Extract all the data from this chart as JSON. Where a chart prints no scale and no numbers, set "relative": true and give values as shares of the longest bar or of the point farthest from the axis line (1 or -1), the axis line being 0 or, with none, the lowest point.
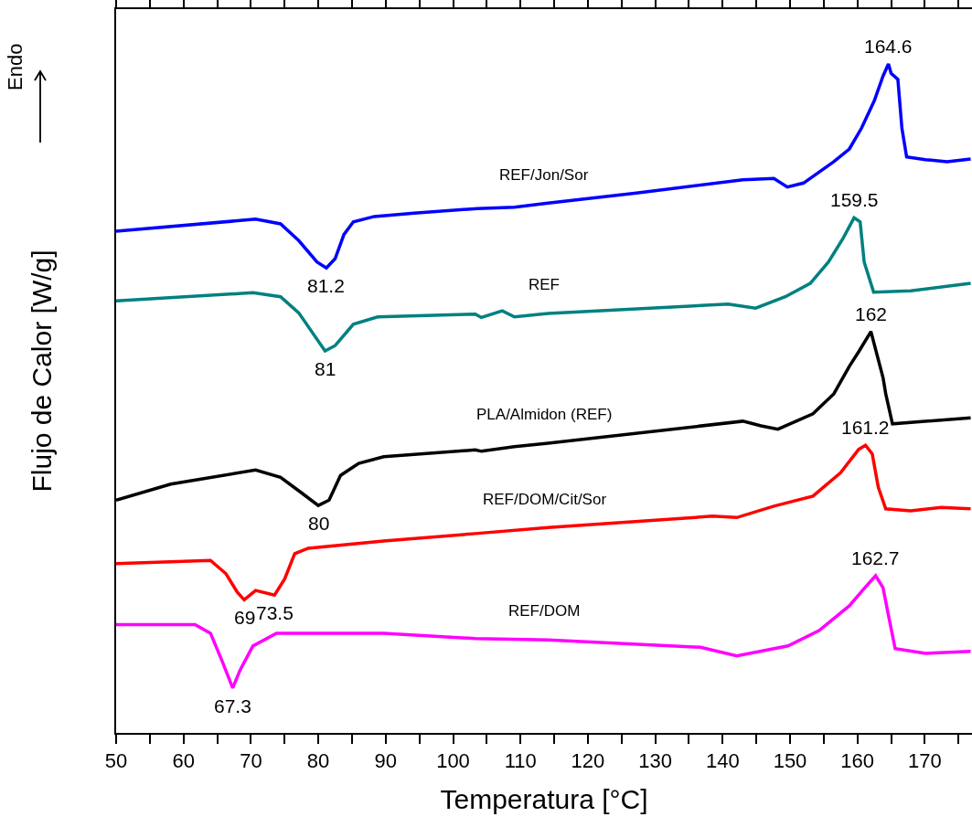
{
  "chart_data": {
    "type": "line",
    "relative": true,
    "xlabel": "Temperatura [°C]",
    "ylabel": "Flujo de Calor [W/g]",
    "xlim": [
      50,
      177
    ],
    "xticks": [
      50,
      {
        "value": 55,
        "label": null
      },
      60,
      {
        "value": 65,
        "label": null
      },
      70,
      {
        "value": 75,
        "label": null
      },
      80,
      {
        "value": 85,
        "label": null
      },
      90,
      {
        "value": 95,
        "label": null
      },
      100,
      {
        "value": 105,
        "label": null
      },
      110,
      {
        "value": 115,
        "label": null
      },
      120,
      {
        "value": 125,
        "label": null
      },
      130,
      {
        "value": 135,
        "label": null
      },
      140,
      {
        "value": 145,
        "label": null
      },
      150,
      {
        "value": 155,
        "label": null
      },
      160,
      {
        "value": 165,
        "label": null
      },
      170,
      {
        "value": 175,
        "label": null
      }
    ],
    "grid": false,
    "legend": false,
    "series": [
      {
        "name": "REF/Jon/Sor",
        "color": "#0000ff",
        "x": [
          50,
          70.7,
          74.4,
          77.1,
          79.8,
          81.2,
          82.5,
          83.8,
          85.2,
          88.3,
          94.2,
          103.6,
          109.1,
          114.1,
          127.2,
          143.0,
          147.6,
          149.6,
          152.0,
          156.5,
          158.8,
          160.6,
          162.5,
          163.8,
          164.6,
          165.0,
          166.0,
          166.6,
          167.3,
          170.1,
          173.3,
          176.8
        ],
        "values": [
          0.75,
          0.768,
          0.761,
          0.736,
          0.704,
          0.695,
          0.709,
          0.745,
          0.764,
          0.772,
          0.777,
          0.784,
          0.786,
          0.792,
          0.807,
          0.827,
          0.829,
          0.816,
          0.822,
          0.854,
          0.873,
          0.904,
          0.945,
          0.982,
          1,
          0.986,
          0.977,
          0.904,
          0.861,
          0.857,
          0.854,
          0.858
        ]
      },
      {
        "name": "REF",
        "color": "#008080",
        "x": [
          50,
          70.3,
          74.4,
          77.1,
          81.0,
          82.5,
          85.2,
          88.8,
          103.3,
          104.2,
          107.3,
          109.1,
          114.1,
          140.8,
          144.9,
          149.3,
          153.0,
          155.7,
          157.9,
          159.5,
          160.4,
          161.0,
          162.4,
          167.9,
          176.8
        ],
        "values": [
          0.646,
          0.658,
          0.652,
          0.628,
          0.571,
          0.579,
          0.611,
          0.622,
          0.626,
          0.621,
          0.631,
          0.622,
          0.627,
          0.641,
          0.635,
          0.652,
          0.672,
          0.704,
          0.74,
          0.77,
          0.764,
          0.704,
          0.659,
          0.661,
          0.672
        ]
      },
      {
        "name": "PLA/Almidon (REF)",
        "color": "#000000",
        "x": [
          50,
          58.1,
          70.7,
          74.4,
          77.5,
          80.0,
          81.6,
          83.3,
          86.0,
          89.7,
          103.3,
          104.2,
          109.1,
          114.1,
          143.0,
          145.7,
          148.2,
          153.4,
          156.5,
          158.8,
          160.2,
          162.0,
          163.8,
          164.2,
          165.2,
          176.8
        ],
        "values": [
          0.348,
          0.372,
          0.393,
          0.382,
          0.359,
          0.34,
          0.348,
          0.385,
          0.403,
          0.413,
          0.423,
          0.421,
          0.428,
          0.433,
          0.466,
          0.459,
          0.454,
          0.477,
          0.507,
          0.548,
          0.57,
          0.6,
          0.531,
          0.507,
          0.462,
          0.471
        ]
      },
      {
        "name": "REF/DOM/Cit/Sor",
        "color": "#ff0000",
        "x": [
          50,
          64.0,
          66.3,
          68.0,
          69.0,
          70.7,
          73.5,
          75.0,
          76.5,
          78.5,
          89.7,
          103.3,
          114.1,
          138.5,
          142.1,
          147.6,
          153.4,
          157.5,
          160.2,
          161.2,
          162.2,
          163.1,
          164.2,
          167.9,
          172.4,
          176.8
        ],
        "values": [
          0.253,
          0.258,
          0.238,
          0.21,
          0.199,
          0.213,
          0.206,
          0.23,
          0.268,
          0.276,
          0.287,
          0.298,
          0.307,
          0.324,
          0.322,
          0.339,
          0.354,
          0.389,
          0.424,
          0.43,
          0.417,
          0.367,
          0.335,
          0.332,
          0.337,
          0.335
        ]
      },
      {
        "name": "REF/DOM",
        "color": "#ff00ff",
        "x": [
          50,
          61.7,
          64.0,
          65.7,
          67.3,
          68.4,
          70.3,
          73.8,
          89.7,
          103.3,
          114.1,
          136.7,
          142.1,
          149.7,
          154.3,
          158.8,
          161.1,
          162.7,
          163.8,
          164.6,
          165.6,
          170.1,
          176.8
        ],
        "values": [
          0.162,
          0.162,
          0.149,
          0.108,
          0.067,
          0.094,
          0.13,
          0.149,
          0.149,
          0.141,
          0.139,
          0.128,
          0.115,
          0.13,
          0.153,
          0.19,
          0.217,
          0.235,
          0.217,
          0.176,
          0.126,
          0.119,
          0.122
        ]
      }
    ],
    "annotations": [
      "Endo",
      {
        "text": "164.6",
        "x": 164.6,
        "y": 1
      },
      {
        "text": "81.2",
        "x": 81.2,
        "y": 0.695
      },
      {
        "text": "159.5",
        "x": 159.5,
        "y": 0.77
      },
      {
        "text": "81",
        "x": 81.0,
        "y": 0.571
      },
      {
        "text": "162",
        "x": 162.0,
        "y": 0.6
      },
      {
        "text": "80",
        "x": 80.0,
        "y": 0.34
      },
      {
        "text": "161.2",
        "x": 161.2,
        "y": 0.43
      },
      {
        "text": "69",
        "x": 69.0,
        "y": 0.199
      },
      {
        "text": "73.5",
        "x": 73.5,
        "y": 0.206
      },
      {
        "text": "162.7",
        "x": 162.7,
        "y": 0.235
      },
      {
        "text": "67.3",
        "x": 67.3,
        "y": 0.067
      }
    ]
  }
}
